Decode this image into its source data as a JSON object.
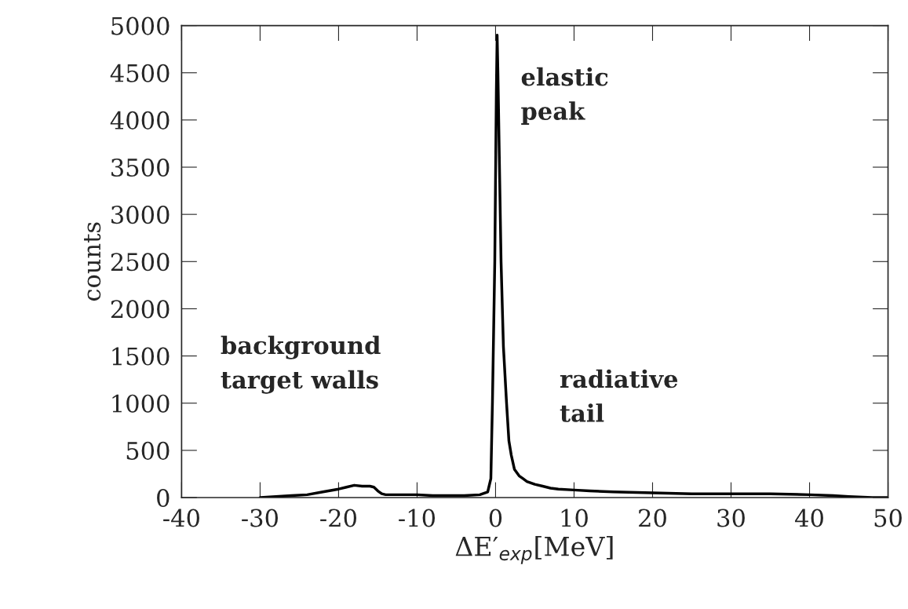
{
  "chart_data": {
    "type": "line",
    "xlabel": "ΔE′$_{exp}$[MeV]",
    "ylabel": "counts",
    "x": [
      -30,
      -28,
      -26,
      -24,
      -22,
      -20,
      -19,
      -18,
      -17,
      -16,
      -15.5,
      -15,
      -14.5,
      -14,
      -12,
      -10,
      -8,
      -6,
      -4,
      -2,
      -1,
      -0.6,
      -0.4,
      -0.1,
      0.1,
      0.2,
      0.3,
      0.7,
      1.0,
      1.4,
      1.7,
      2.0,
      2.4,
      3,
      3.5,
      4,
      5,
      6,
      7,
      8,
      10,
      12,
      15,
      20,
      25,
      30,
      35,
      40,
      43,
      45,
      48,
      50
    ],
    "series": [
      {
        "color": "#000000",
        "values": [
          0,
          10,
          20,
          30,
          60,
          90,
          110,
          130,
          120,
          120,
          110,
          70,
          40,
          30,
          30,
          30,
          20,
          20,
          20,
          30,
          60,
          200,
          1000,
          2500,
          4300,
          4900,
          4500,
          2500,
          1600,
          1000,
          600,
          450,
          300,
          230,
          200,
          170,
          140,
          120,
          100,
          90,
          80,
          70,
          60,
          50,
          40,
          40,
          40,
          30,
          20,
          10,
          0,
          0
        ]
      }
    ],
    "annotations": [
      "elastic\npeak",
      "background\ntarget walls",
      "radiative\ntail"
    ],
    "xlim": [
      -40,
      50
    ],
    "ylim": [
      0,
      5000
    ],
    "xticks": [
      -40,
      -30,
      -20,
      -10,
      0,
      10,
      20,
      30,
      40,
      50
    ],
    "yticks": [
      0,
      500,
      1000,
      1500,
      2000,
      2500,
      3000,
      3500,
      4000,
      4500,
      5000
    ],
    "grid": false,
    "legend": false,
    "marker": "none",
    "line_style": "solid"
  }
}
